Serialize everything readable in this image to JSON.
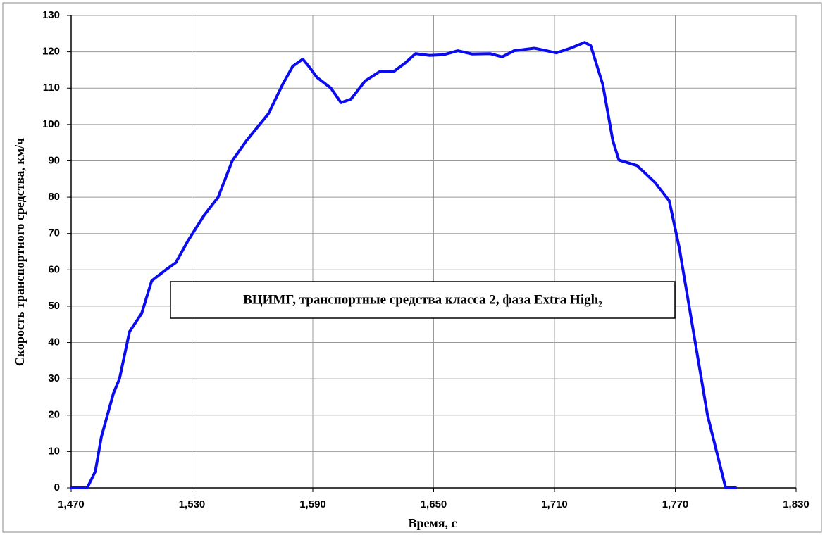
{
  "chart_data": {
    "type": "line",
    "annotation": "ВЦИМГ, транспортные средства класса 2, фаза Extra High₂",
    "x_label": "Время, с",
    "y_label": "Скорость транспортного средства, км/ч",
    "grid": true,
    "xlim": [
      1470,
      1830
    ],
    "xticks": [
      {
        "value": 1470,
        "label": "1,470"
      },
      {
        "value": 1530,
        "label": "1,530"
      },
      {
        "value": 1590,
        "label": "1,590"
      },
      {
        "value": 1650,
        "label": "1,650"
      },
      {
        "value": 1710,
        "label": "1,710"
      },
      {
        "value": 1770,
        "label": "1,770"
      },
      {
        "value": 1830,
        "label": "1,830"
      }
    ],
    "ylim": [
      0,
      130
    ],
    "yticks": [
      0,
      10,
      20,
      30,
      40,
      50,
      60,
      70,
      80,
      90,
      100,
      110,
      120,
      130
    ],
    "series": [
      {
        "color": "#0b0bf0",
        "x": [
          1470,
          1478,
          1482,
          1485,
          1491,
          1494,
          1499,
          1505,
          1510,
          1517,
          1522,
          1528,
          1536,
          1543,
          1550,
          1557,
          1568,
          1575,
          1580,
          1585,
          1588,
          1592,
          1599,
          1604,
          1609,
          1616,
          1623,
          1630,
          1636,
          1641,
          1648,
          1655,
          1662,
          1669,
          1678,
          1684,
          1690,
          1700,
          1711,
          1718,
          1725,
          1728,
          1734,
          1739,
          1742,
          1751,
          1760,
          1767,
          1772,
          1779,
          1786,
          1795,
          1800
        ],
        "values": [
          0,
          0,
          4.5,
          14,
          26,
          30,
          43,
          48,
          57,
          60,
          62,
          68,
          75,
          80,
          90,
          95.5,
          103,
          111,
          116,
          118,
          116,
          113,
          110,
          106,
          107,
          112,
          114.5,
          114.5,
          117,
          119.5,
          119,
          119.2,
          120.3,
          119.4,
          119.5,
          118.6,
          120.3,
          121,
          119.7,
          121,
          122.6,
          121.7,
          111,
          95.5,
          90.2,
          88.7,
          84,
          79,
          66,
          43,
          20,
          0,
          0
        ]
      }
    ]
  }
}
